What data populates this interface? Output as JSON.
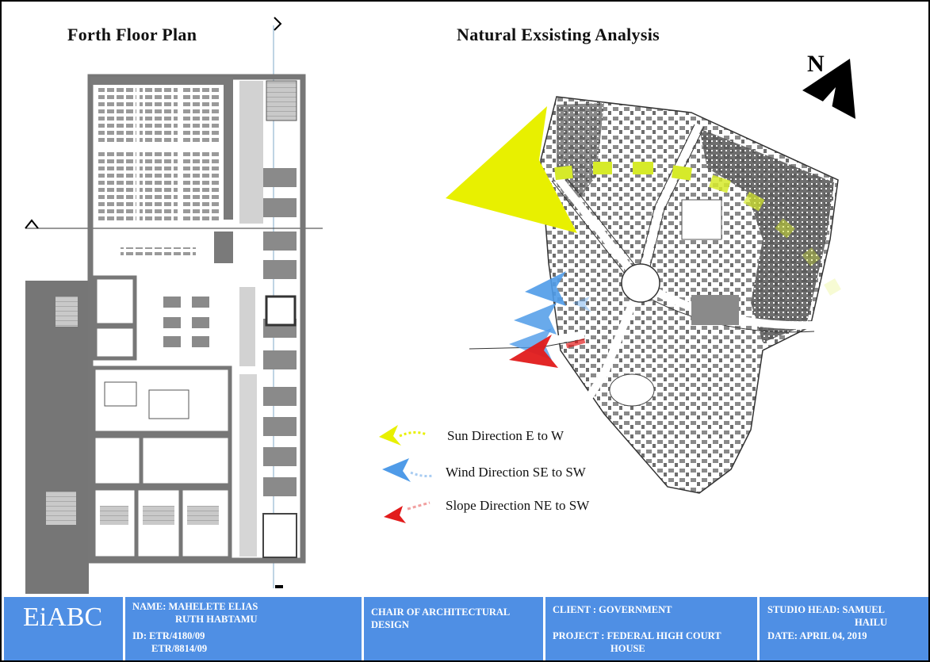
{
  "titles": {
    "floor_plan": "Forth Floor Plan",
    "analysis": "Natural Exsisting Analysis"
  },
  "north": {
    "letter": "N"
  },
  "legend": {
    "sun": "Sun Direction E to W",
    "wind": "Wind Direction SE to SW",
    "slope": "Slope Direction NE to SW"
  },
  "colors": {
    "sun": "#e8f000",
    "wind": "#4f9be8",
    "slope": "#e21b1b",
    "titleblock": "#4f8fe4",
    "walls": "#7a7a7a"
  },
  "titleblock": {
    "logo": "EiABC",
    "name_line1": "NAME: MAHELETE ELIAS",
    "name_line2": "RUTH HABTAMU",
    "id_line1": "ID: ETR/4180/09",
    "id_line2": "ETR/8814/09",
    "chair_line1": "CHAIR OF ARCHITECTURAL",
    "chair_line2": "DESIGN",
    "client": "CLIENT : GOVERNMENT",
    "project_line1": "PROJECT : FEDERAL HIGH COURT",
    "project_line2": "HOUSE",
    "studio_line1": "STUDIO HEAD: SAMUEL",
    "studio_line2": "HAILU",
    "date": "DATE: APRIL 04, 2019"
  }
}
